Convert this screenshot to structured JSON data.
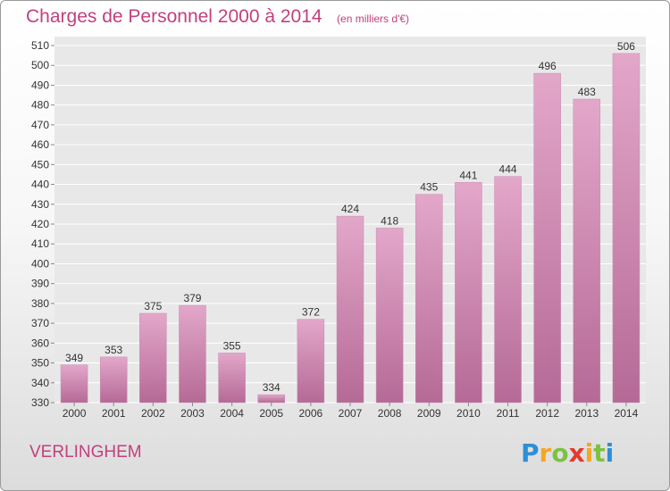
{
  "title": "Charges de Personnel 2000 à 2014",
  "subtitle": "(en milliers d'€)",
  "town": "VERLINGHEM",
  "brand": {
    "letters": [
      "P",
      "r",
      "o",
      "x",
      "i",
      "t",
      "i"
    ],
    "colors": [
      "#2f8fd6",
      "#f5a623",
      "#7cc242",
      "#e5392e",
      "#f5a623",
      "#7cc242",
      "#2f8fd6"
    ]
  },
  "colors": {
    "bar_top": "#e3a7ca",
    "bar_bottom": "#b56a96",
    "text_accent": "#c2407e"
  },
  "chart_data": {
    "type": "bar",
    "title": "Charges de Personnel 2000 à 2014",
    "subtitle": "(en milliers d'€)",
    "categories": [
      "2000",
      "2001",
      "2002",
      "2003",
      "2004",
      "2005",
      "2006",
      "2007",
      "2008",
      "2009",
      "2010",
      "2011",
      "2012",
      "2013",
      "2014"
    ],
    "values": [
      349,
      353,
      375,
      379,
      355,
      334,
      372,
      424,
      418,
      435,
      441,
      444,
      496,
      483,
      506
    ],
    "ylim": [
      330,
      510
    ],
    "yticks": [
      330,
      340,
      350,
      360,
      370,
      380,
      390,
      400,
      410,
      420,
      430,
      440,
      450,
      460,
      470,
      480,
      490,
      500,
      510
    ],
    "grid": true,
    "xlabel": "",
    "ylabel": ""
  }
}
